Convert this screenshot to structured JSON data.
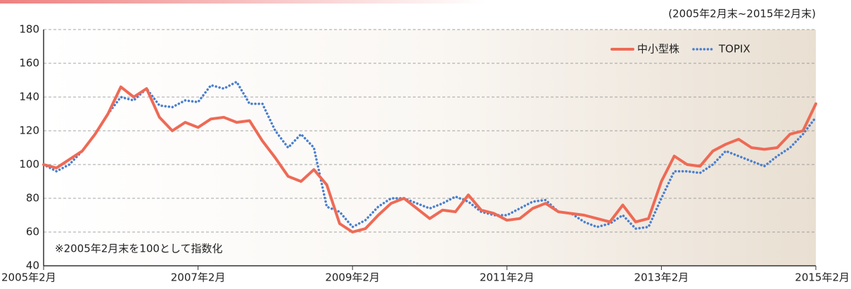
{
  "chart_data": {
    "type": "line",
    "subtitle": "(2005年2月末~2015年2月末)",
    "annotation": "※2005年2月末を100として指数化",
    "x": [
      "2005-02",
      "2005-04",
      "2005-06",
      "2005-08",
      "2005-10",
      "2005-12",
      "2006-02",
      "2006-04",
      "2006-06",
      "2006-08",
      "2006-10",
      "2006-12",
      "2007-02",
      "2007-04",
      "2007-06",
      "2007-08",
      "2007-10",
      "2007-12",
      "2008-02",
      "2008-04",
      "2008-06",
      "2008-08",
      "2008-10",
      "2008-12",
      "2009-02",
      "2009-04",
      "2009-06",
      "2009-08",
      "2009-10",
      "2009-12",
      "2010-02",
      "2010-04",
      "2010-06",
      "2010-08",
      "2010-10",
      "2010-12",
      "2011-02",
      "2011-04",
      "2011-06",
      "2011-08",
      "2011-10",
      "2011-12",
      "2012-02",
      "2012-04",
      "2012-06",
      "2012-08",
      "2012-10",
      "2012-12",
      "2013-02",
      "2013-04",
      "2013-06",
      "2013-08",
      "2013-10",
      "2013-12",
      "2014-02",
      "2014-04",
      "2014-06",
      "2014-08",
      "2014-10",
      "2014-12",
      "2015-02"
    ],
    "series": [
      {
        "name": "中小型株",
        "color": "#ee6a55",
        "style": "solid",
        "values": [
          100,
          98,
          103,
          108,
          118,
          130,
          146,
          140,
          145,
          128,
          120,
          125,
          122,
          127,
          128,
          125,
          126,
          114,
          104,
          93,
          90,
          97,
          88,
          65,
          60,
          62,
          70,
          77,
          80,
          74,
          68,
          73,
          72,
          82,
          73,
          71,
          67,
          68,
          74,
          77,
          72,
          71,
          70,
          68,
          66,
          76,
          66,
          68,
          90,
          105,
          100,
          99,
          108,
          112,
          115,
          110,
          109,
          110,
          118,
          120,
          136
        ]
      },
      {
        "name": "TOPIX",
        "color": "#4a7fcf",
        "style": "dotted",
        "values": [
          100,
          96,
          100,
          108,
          118,
          130,
          140,
          138,
          145,
          135,
          134,
          138,
          137,
          147,
          145,
          149,
          136,
          136,
          120,
          110,
          118,
          110,
          75,
          72,
          63,
          67,
          75,
          80,
          80,
          77,
          74,
          77,
          81,
          78,
          72,
          70,
          70,
          74,
          78,
          79,
          72,
          71,
          66,
          63,
          65,
          70,
          62,
          63,
          80,
          96,
          96,
          95,
          100,
          108,
          105,
          102,
          99,
          105,
          110,
          118,
          128
        ]
      }
    ],
    "ylim": [
      40,
      180
    ],
    "yticks": [
      40,
      60,
      80,
      100,
      120,
      140,
      160,
      180
    ],
    "xlim": [
      "2005-02",
      "2015-02"
    ],
    "xticks": [
      {
        "value": "2005-02",
        "label": "2005年2月"
      },
      {
        "value": "2007-02",
        "label": "2007年2月"
      },
      {
        "value": "2009-02",
        "label": "2009年2月"
      },
      {
        "value": "2011-02",
        "label": "2011年2月"
      },
      {
        "value": "2013-02",
        "label": "2013年2月"
      },
      {
        "value": "2015-02",
        "label": "2015年2月"
      }
    ],
    "grid": true,
    "legend": "top-right"
  }
}
